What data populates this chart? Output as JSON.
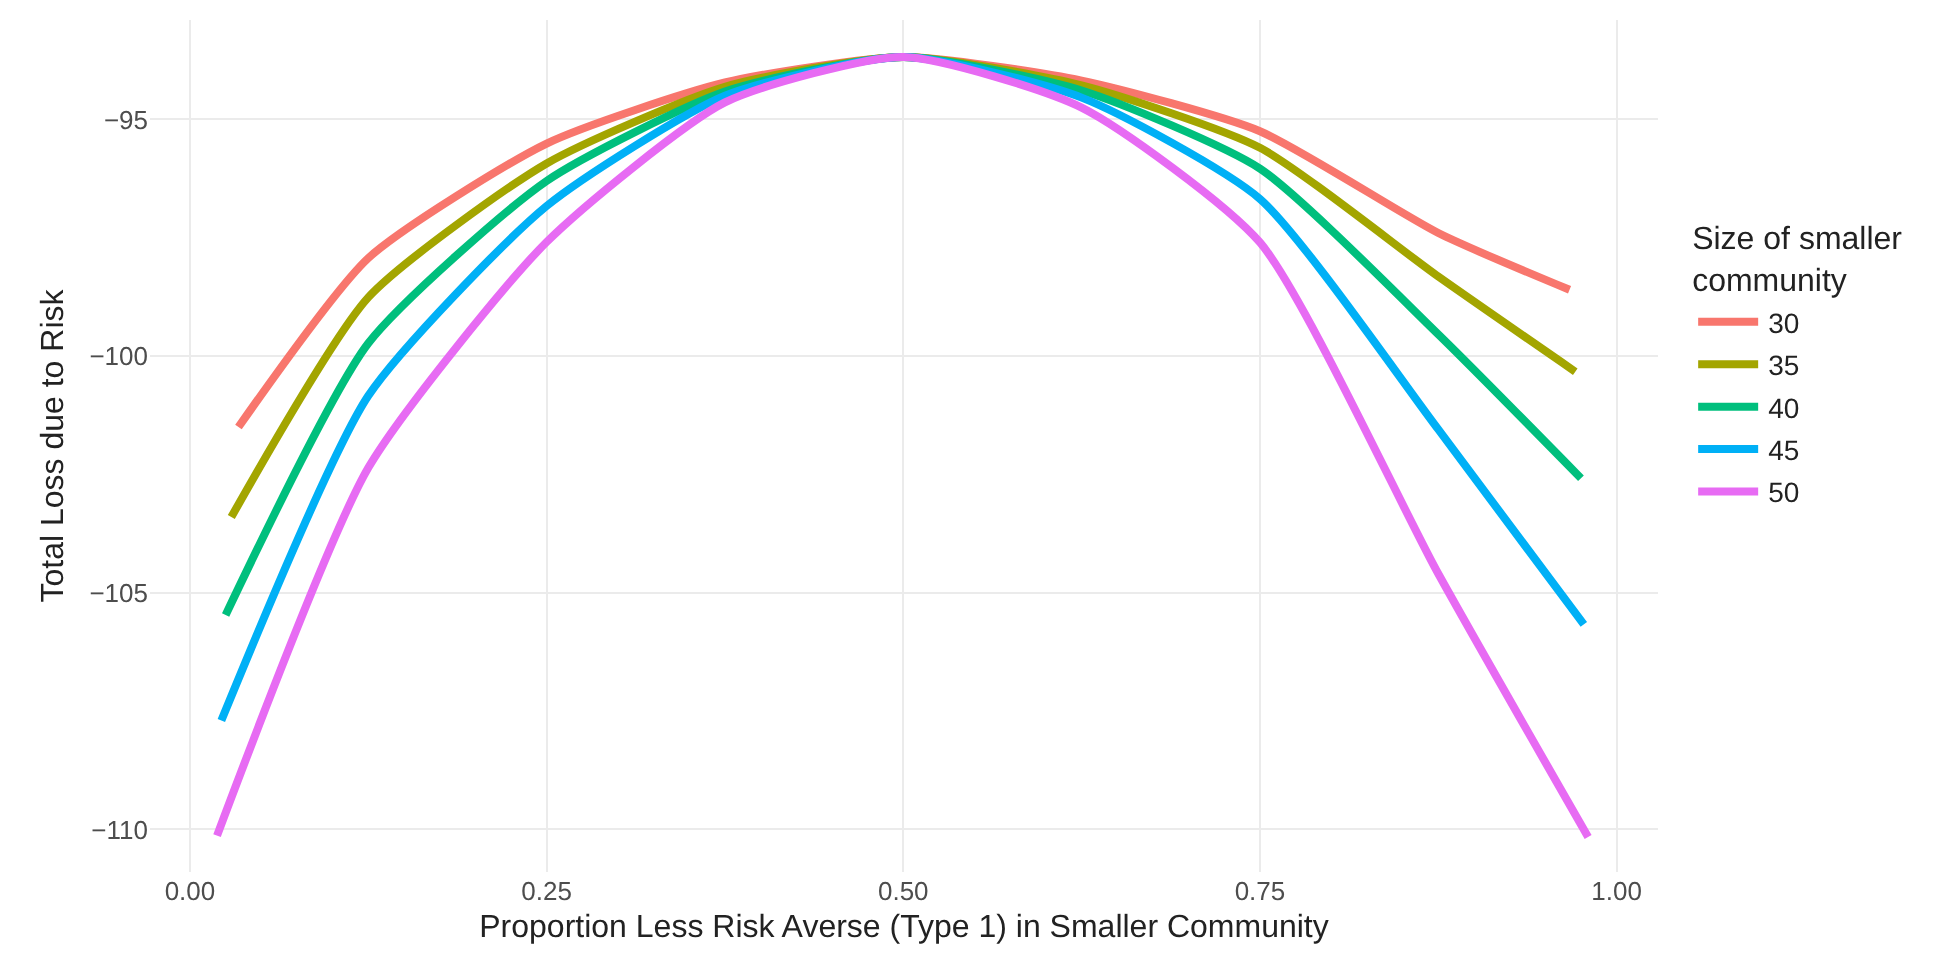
{
  "chart_data": {
    "type": "line",
    "xlabel": "Proportion Less Risk Averse (Type 1) in Smaller Community",
    "ylabel": "Total Loss due to Risk",
    "legend_title": "Size of smaller\ncommunity",
    "legend": "right",
    "grid": true,
    "marker": "none",
    "line_style": "solid",
    "xlim": [
      -0.028,
      1.029
    ],
    "ylim": [
      -110.9,
      -92.9
    ],
    "xticks": [
      {
        "value": 0,
        "label": "0.00"
      },
      0.25,
      {
        "value": 0.5,
        "label": "0.50"
      },
      0.75,
      {
        "value": 1,
        "label": "1.00"
      }
    ],
    "yticks": [
      -110,
      -105,
      -100,
      -95
    ],
    "series": [
      {
        "name": "30",
        "color": "#f8766d",
        "x": [
          0.034,
          0.125,
          0.25,
          0.375,
          0.5,
          0.625,
          0.75,
          0.875,
          0.967
        ],
        "values": [
          -101.5,
          -97.93,
          -95.51,
          -94.22,
          -93.68,
          -94.18,
          -95.25,
          -97.4,
          -98.6
        ]
      },
      {
        "name": "35",
        "color": "#a3a500",
        "x": [
          0.029,
          0.125,
          0.25,
          0.375,
          0.5,
          0.625,
          0.75,
          0.875,
          0.971
        ],
        "values": [
          -103.4,
          -98.76,
          -95.93,
          -94.31,
          -93.68,
          -94.28,
          -95.6,
          -98.32,
          -100.33
        ]
      },
      {
        "name": "40",
        "color": "#00bf7d",
        "x": [
          0.025,
          0.125,
          0.25,
          0.375,
          0.5,
          0.625,
          0.75,
          0.875,
          0.975
        ],
        "values": [
          -105.47,
          -99.73,
          -96.3,
          -94.41,
          -93.68,
          -94.39,
          -96.04,
          -99.54,
          -102.58
        ]
      },
      {
        "name": "45",
        "color": "#00b0f6",
        "x": [
          0.022,
          0.125,
          0.25,
          0.375,
          0.5,
          0.625,
          0.75,
          0.875,
          0.977
        ],
        "values": [
          -107.7,
          -100.84,
          -96.83,
          -94.5,
          -93.68,
          -94.54,
          -96.68,
          -101.55,
          -105.67
        ]
      },
      {
        "name": "50",
        "color": "#e76bf3",
        "x": [
          0.019,
          0.125,
          0.25,
          0.375,
          0.5,
          0.625,
          0.75,
          0.875,
          0.98
        ],
        "values": [
          -110.13,
          -102.36,
          -97.59,
          -94.64,
          -93.68,
          -94.75,
          -97.6,
          -104.6,
          -110.16
        ]
      }
    ]
  }
}
